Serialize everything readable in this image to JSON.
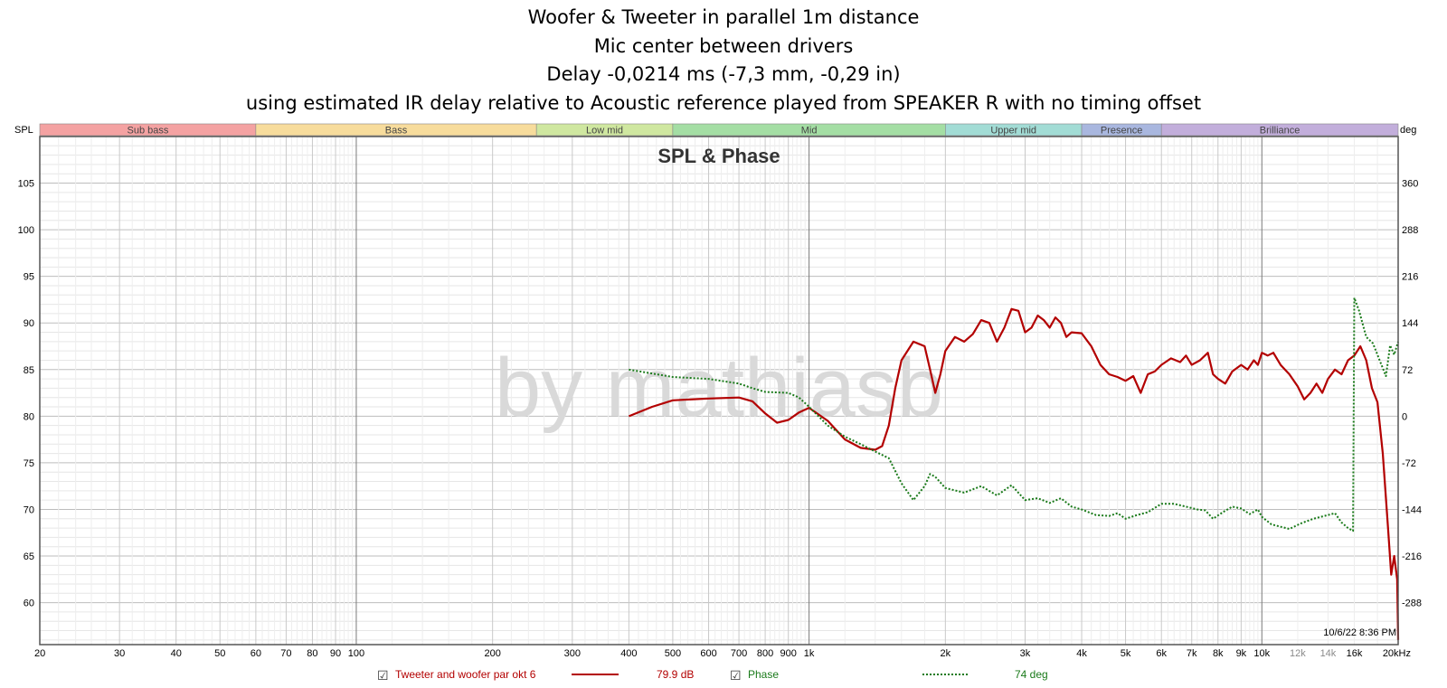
{
  "chart_data": {
    "type": "line",
    "title": [
      "Woofer & Tweeter in parallel 1m distance",
      "Mic center between drivers",
      "Delay -0,0214 ms (-7,3 mm, -0,29 in)",
      "using estimated IR delay relative to Acoustic reference played from SPEAKER R with no timing offset"
    ],
    "panel_title": "SPL & Phase",
    "watermark": "by mathiasb",
    "timestamp": "10/6/22 8:36 PM",
    "left_axis": {
      "label": "SPL",
      "range": [
        55.5,
        110
      ],
      "ticks": [
        "105",
        "100",
        "95",
        "90",
        "85",
        "80",
        "75",
        "70",
        "65",
        "60"
      ],
      "tick_values": [
        105,
        100,
        95,
        90,
        85,
        80,
        75,
        70,
        65,
        60
      ]
    },
    "right_axis": {
      "label": "deg",
      "ticks": [
        "360",
        "288",
        "216",
        "144",
        "72",
        "0",
        "-72",
        "-144",
        "-216",
        "-288"
      ]
    },
    "x_axis": {
      "scale": "log",
      "range": [
        20,
        20000
      ],
      "ticks": [
        {
          "v": 20,
          "l": "20"
        },
        {
          "v": 30,
          "l": "30"
        },
        {
          "v": 40,
          "l": "40"
        },
        {
          "v": 50,
          "l": "50"
        },
        {
          "v": 60,
          "l": "60"
        },
        {
          "v": 70,
          "l": "70"
        },
        {
          "v": 80,
          "l": "80"
        },
        {
          "v": 90,
          "l": "90"
        },
        {
          "v": 100,
          "l": "100"
        },
        {
          "v": 200,
          "l": "200"
        },
        {
          "v": 300,
          "l": "300"
        },
        {
          "v": 400,
          "l": "400"
        },
        {
          "v": 500,
          "l": "500"
        },
        {
          "v": 600,
          "l": "600"
        },
        {
          "v": 700,
          "l": "700"
        },
        {
          "v": 800,
          "l": "800"
        },
        {
          "v": 900,
          "l": "900"
        },
        {
          "v": 1000,
          "l": "1k"
        },
        {
          "v": 2000,
          "l": "2k"
        },
        {
          "v": 3000,
          "l": "3k"
        },
        {
          "v": 4000,
          "l": "4k"
        },
        {
          "v": 5000,
          "l": "5k"
        },
        {
          "v": 6000,
          "l": "6k"
        },
        {
          "v": 7000,
          "l": "7k"
        },
        {
          "v": 8000,
          "l": "8k"
        },
        {
          "v": 9000,
          "l": "9k"
        },
        {
          "v": 10000,
          "l": "10k"
        },
        {
          "v": 12000,
          "l": "12k"
        },
        {
          "v": 14000,
          "l": "14k"
        },
        {
          "v": 16000,
          "l": "16k"
        },
        {
          "v": 20000,
          "l": "20kHz"
        }
      ]
    },
    "bands": [
      {
        "name": "Sub bass",
        "from": 20,
        "to": 60,
        "color": "#f4a2a2"
      },
      {
        "name": "Bass",
        "from": 60,
        "to": 250,
        "color": "#f7dc9c"
      },
      {
        "name": "Low mid",
        "from": 250,
        "to": 500,
        "color": "#cfe7a0"
      },
      {
        "name": "Mid",
        "from": 500,
        "to": 2000,
        "color": "#a4dea4"
      },
      {
        "name": "Upper mid",
        "from": 2000,
        "to": 4000,
        "color": "#a2dcd5"
      },
      {
        "name": "Presence",
        "from": 4000,
        "to": 6000,
        "color": "#a9b7df"
      },
      {
        "name": "Brilliance",
        "from": 6000,
        "to": 20000,
        "color": "#c2aedb"
      }
    ],
    "series": [
      {
        "name": "Tweeter and woofer par okt 6",
        "value_text": "79.9 dB",
        "color": "#b30000",
        "style": "solid",
        "points": [
          [
            400,
            80.0
          ],
          [
            450,
            81.0
          ],
          [
            500,
            81.7
          ],
          [
            600,
            81.9
          ],
          [
            700,
            82.0
          ],
          [
            750,
            81.6
          ],
          [
            800,
            80.3
          ],
          [
            850,
            79.3
          ],
          [
            900,
            79.6
          ],
          [
            950,
            80.4
          ],
          [
            1000,
            80.9
          ],
          [
            1100,
            79.5
          ],
          [
            1200,
            77.5
          ],
          [
            1300,
            76.6
          ],
          [
            1400,
            76.4
          ],
          [
            1450,
            76.8
          ],
          [
            1500,
            79.0
          ],
          [
            1550,
            83.0
          ],
          [
            1600,
            86.0
          ],
          [
            1700,
            88.0
          ],
          [
            1800,
            87.5
          ],
          [
            1850,
            85.0
          ],
          [
            1900,
            82.5
          ],
          [
            1950,
            84.5
          ],
          [
            2000,
            87.0
          ],
          [
            2100,
            88.5
          ],
          [
            2200,
            88.0
          ],
          [
            2300,
            88.8
          ],
          [
            2400,
            90.3
          ],
          [
            2500,
            90.0
          ],
          [
            2600,
            88.0
          ],
          [
            2700,
            89.5
          ],
          [
            2800,
            91.5
          ],
          [
            2900,
            91.3
          ],
          [
            3000,
            89.0
          ],
          [
            3100,
            89.5
          ],
          [
            3200,
            90.8
          ],
          [
            3300,
            90.3
          ],
          [
            3400,
            89.5
          ],
          [
            3500,
            90.6
          ],
          [
            3600,
            90.0
          ],
          [
            3700,
            88.5
          ],
          [
            3800,
            89.0
          ],
          [
            4000,
            88.9
          ],
          [
            4200,
            87.5
          ],
          [
            4400,
            85.5
          ],
          [
            4600,
            84.5
          ],
          [
            4800,
            84.2
          ],
          [
            5000,
            83.8
          ],
          [
            5200,
            84.3
          ],
          [
            5400,
            82.5
          ],
          [
            5600,
            84.5
          ],
          [
            5800,
            84.8
          ],
          [
            6000,
            85.5
          ],
          [
            6300,
            86.2
          ],
          [
            6600,
            85.8
          ],
          [
            6800,
            86.5
          ],
          [
            7000,
            85.5
          ],
          [
            7300,
            86.0
          ],
          [
            7600,
            86.8
          ],
          [
            7800,
            84.5
          ],
          [
            8000,
            84.0
          ],
          [
            8300,
            83.5
          ],
          [
            8600,
            84.8
          ],
          [
            9000,
            85.5
          ],
          [
            9300,
            85.0
          ],
          [
            9600,
            86.0
          ],
          [
            9800,
            85.5
          ],
          [
            10000,
            86.8
          ],
          [
            10300,
            86.5
          ],
          [
            10600,
            86.8
          ],
          [
            11000,
            85.5
          ],
          [
            11500,
            84.5
          ],
          [
            12000,
            83.2
          ],
          [
            12400,
            81.8
          ],
          [
            12800,
            82.5
          ],
          [
            13200,
            83.5
          ],
          [
            13600,
            82.5
          ],
          [
            14000,
            84.0
          ],
          [
            14500,
            85.0
          ],
          [
            15000,
            84.5
          ],
          [
            15500,
            86.0
          ],
          [
            16000,
            86.5
          ],
          [
            16500,
            87.5
          ],
          [
            17000,
            86.0
          ],
          [
            17500,
            83.0
          ],
          [
            18000,
            81.5
          ],
          [
            18500,
            76.0
          ],
          [
            19000,
            68.0
          ],
          [
            19300,
            63.0
          ],
          [
            19600,
            65.0
          ],
          [
            19900,
            62.5
          ],
          [
            20000,
            56.0
          ]
        ]
      },
      {
        "name": "Phase",
        "value_text": "74 deg",
        "color": "#1a7a1a",
        "style": "dotted",
        "points": [
          [
            400,
            85.0
          ],
          [
            500,
            84.2
          ],
          [
            600,
            84.0
          ],
          [
            700,
            83.5
          ],
          [
            750,
            83.0
          ],
          [
            800,
            82.6
          ],
          [
            900,
            82.5
          ],
          [
            950,
            82.0
          ],
          [
            1000,
            81.0
          ],
          [
            1100,
            79.0
          ],
          [
            1200,
            77.8
          ],
          [
            1300,
            77.0
          ],
          [
            1400,
            76.2
          ],
          [
            1500,
            75.5
          ],
          [
            1600,
            72.8
          ],
          [
            1700,
            71.0
          ],
          [
            1800,
            72.5
          ],
          [
            1850,
            73.8
          ],
          [
            1900,
            73.5
          ],
          [
            2000,
            72.3
          ],
          [
            2200,
            71.8
          ],
          [
            2400,
            72.5
          ],
          [
            2600,
            71.5
          ],
          [
            2800,
            72.6
          ],
          [
            3000,
            71.0
          ],
          [
            3200,
            71.2
          ],
          [
            3400,
            70.7
          ],
          [
            3600,
            71.2
          ],
          [
            3800,
            70.3
          ],
          [
            4000,
            70.0
          ],
          [
            4300,
            69.4
          ],
          [
            4600,
            69.3
          ],
          [
            4800,
            69.6
          ],
          [
            5000,
            69.0
          ],
          [
            5300,
            69.4
          ],
          [
            5600,
            69.7
          ],
          [
            6000,
            70.6
          ],
          [
            6400,
            70.6
          ],
          [
            6800,
            70.3
          ],
          [
            7200,
            70.0
          ],
          [
            7500,
            69.9
          ],
          [
            7800,
            69.0
          ],
          [
            8200,
            69.7
          ],
          [
            8600,
            70.3
          ],
          [
            9000,
            70.1
          ],
          [
            9400,
            69.5
          ],
          [
            9800,
            70.0
          ],
          [
            10000,
            69.2
          ],
          [
            10500,
            68.4
          ],
          [
            11500,
            67.9
          ],
          [
            12200,
            68.5
          ],
          [
            13000,
            69.0
          ],
          [
            14000,
            69.4
          ],
          [
            14500,
            69.6
          ],
          [
            15000,
            68.6
          ],
          [
            15500,
            68.0
          ],
          [
            15900,
            67.7
          ],
          [
            16000,
            92.7
          ],
          [
            16400,
            91.3
          ],
          [
            17000,
            88.5
          ],
          [
            17600,
            87.8
          ],
          [
            18200,
            86.0
          ],
          [
            18800,
            84.3
          ],
          [
            19200,
            87.6
          ],
          [
            19600,
            86.6
          ],
          [
            20000,
            88.0
          ]
        ]
      }
    ]
  },
  "legend": [
    {
      "check": "☑",
      "label": "Tweeter and woofer par okt 6",
      "value": "79.9 dB"
    },
    {
      "check": "☑",
      "label": "Phase",
      "value": "74 deg"
    }
  ]
}
